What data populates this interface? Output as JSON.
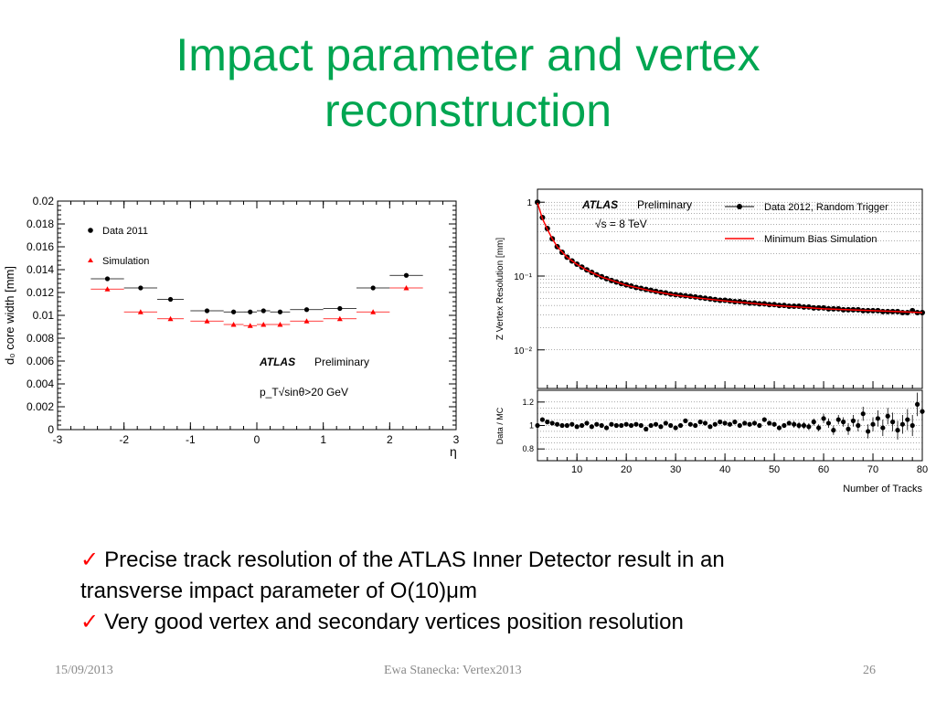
{
  "slide": {
    "title_line1": "Impact parameter and vertex",
    "title_line2": "reconstruction",
    "title_color": "#00a651",
    "bullets": [
      {
        "icon": "check-icon",
        "text": "Precise track resolution of the ATLAS Inner Detector result in an"
      },
      {
        "icon": null,
        "text": "transverse impact parameter of O(10)μm"
      },
      {
        "icon": "check-icon",
        "text": "Very good vertex and secondary vertices position resolution"
      }
    ],
    "footer": {
      "date": "15/09/2013",
      "author": "Ewa Stanecka: Vertex2013",
      "page": "26"
    }
  },
  "chart_data": [
    {
      "type": "scatter",
      "ylabel": "d₀ core width [mm]",
      "xlabel": "η",
      "xlim": [
        -3,
        3
      ],
      "ylim": [
        0,
        0.02
      ],
      "x_ticks": [
        "-3",
        "-2",
        "-1",
        "0",
        "1",
        "2",
        "3"
      ],
      "y_ticks": [
        "0",
        "0.002",
        "0.004",
        "0.006",
        "0.008",
        "0.01",
        "0.012",
        "0.014",
        "0.016",
        "0.018",
        "0.02"
      ],
      "legend_position": "top-left",
      "annotations": {
        "atlas": "ATLAS",
        "preliminary": "Preliminary",
        "cut": "p_T√sinθ>20 GeV"
      },
      "series": [
        {
          "name": "Data 2011",
          "marker": "circle",
          "color": "#000000",
          "x": [
            -2.25,
            -1.75,
            -1.3,
            -0.75,
            -0.35,
            -0.1,
            0.1,
            0.35,
            0.75,
            1.25,
            1.75,
            2.25
          ],
          "xerr": [
            0.25,
            0.25,
            0.2,
            0.25,
            0.15,
            0.1,
            0.1,
            0.15,
            0.25,
            0.25,
            0.25,
            0.25
          ],
          "y": [
            0.0132,
            0.0124,
            0.0114,
            0.0104,
            0.0103,
            0.0103,
            0.0104,
            0.0103,
            0.0105,
            0.0106,
            0.0124,
            0.0135
          ]
        },
        {
          "name": "Simulation",
          "marker": "triangle",
          "color": "#ff0000",
          "x": [
            -2.25,
            -1.75,
            -1.3,
            -0.75,
            -0.35,
            -0.1,
            0.1,
            0.35,
            0.75,
            1.25,
            1.75,
            2.25
          ],
          "xerr": [
            0.25,
            0.25,
            0.2,
            0.25,
            0.15,
            0.1,
            0.1,
            0.15,
            0.25,
            0.25,
            0.25,
            0.25
          ],
          "y": [
            0.0123,
            0.0103,
            0.0097,
            0.0095,
            0.0092,
            0.0091,
            0.0092,
            0.0092,
            0.0095,
            0.0097,
            0.0103,
            0.0124
          ]
        }
      ]
    },
    {
      "type": "scatter",
      "ylabel": "Z Vertex Resolution [mm]",
      "xlabel": "Number of Tracks",
      "xlim": [
        2,
        80
      ],
      "ylim": [
        0.003,
        1.5
      ],
      "log_y": true,
      "x_ticks": [
        "10",
        "20",
        "30",
        "40",
        "50",
        "60",
        "70",
        "80"
      ],
      "y_ticks": [
        "1",
        "10⁻¹",
        "10⁻²"
      ],
      "legend_position": "top-right",
      "annotations": {
        "atlas": "ATLAS",
        "preliminary": "Preliminary",
        "energy": "√s = 8 TeV"
      },
      "series": [
        {
          "name": "Data 2012, Random Trigger",
          "marker": "circle",
          "color": "#000000",
          "x": [
            2,
            3,
            4,
            5,
            6,
            7,
            8,
            9,
            10,
            11,
            12,
            13,
            14,
            15,
            16,
            17,
            18,
            19,
            20,
            21,
            22,
            23,
            24,
            25,
            26,
            27,
            28,
            29,
            30,
            31,
            32,
            33,
            34,
            35,
            36,
            37,
            38,
            39,
            40,
            41,
            42,
            43,
            44,
            45,
            46,
            47,
            48,
            49,
            50,
            51,
            52,
            53,
            54,
            55,
            56,
            57,
            58,
            59,
            60,
            61,
            62,
            63,
            64,
            65,
            66,
            67,
            68,
            69,
            70,
            71,
            72,
            73,
            74,
            75,
            76,
            77,
            78,
            79,
            80
          ],
          "y": [
            1.0,
            0.62,
            0.44,
            0.32,
            0.25,
            0.21,
            0.18,
            0.16,
            0.145,
            0.132,
            0.121,
            0.112,
            0.104,
            0.098,
            0.092,
            0.087,
            0.083,
            0.079,
            0.076,
            0.073,
            0.07,
            0.068,
            0.066,
            0.064,
            0.062,
            0.06,
            0.059,
            0.057,
            0.056,
            0.055,
            0.054,
            0.053,
            0.052,
            0.051,
            0.05,
            0.049,
            0.048,
            0.047,
            0.047,
            0.046,
            0.045,
            0.045,
            0.044,
            0.043,
            0.043,
            0.042,
            0.042,
            0.041,
            0.041,
            0.04,
            0.04,
            0.039,
            0.039,
            0.039,
            0.038,
            0.038,
            0.037,
            0.037,
            0.037,
            0.036,
            0.036,
            0.036,
            0.035,
            0.035,
            0.035,
            0.035,
            0.034,
            0.034,
            0.034,
            0.034,
            0.033,
            0.033,
            0.033,
            0.033,
            0.032,
            0.032,
            0.034,
            0.032,
            0.032
          ]
        },
        {
          "name": "Minimum Bias Simulation",
          "marker": "line",
          "color": "#ff0000",
          "x": [
            2,
            3,
            4,
            5,
            6,
            8,
            10,
            12,
            15,
            20,
            25,
            30,
            35,
            40,
            45,
            50,
            55,
            60,
            65,
            70,
            75,
            80
          ],
          "y": [
            0.98,
            0.6,
            0.43,
            0.32,
            0.25,
            0.18,
            0.144,
            0.12,
            0.097,
            0.075,
            0.063,
            0.055,
            0.05,
            0.046,
            0.043,
            0.04,
            0.038,
            0.036,
            0.035,
            0.034,
            0.033,
            0.032
          ]
        }
      ],
      "ratio_panel": {
        "ylabel": "Data / MC",
        "ylim": [
          0.7,
          1.3
        ],
        "y_ticks": [
          "0.8",
          "1",
          "1.2"
        ],
        "x": [
          2,
          3,
          4,
          5,
          6,
          7,
          8,
          9,
          10,
          11,
          12,
          13,
          14,
          15,
          16,
          17,
          18,
          19,
          20,
          21,
          22,
          23,
          24,
          25,
          26,
          27,
          28,
          29,
          30,
          31,
          32,
          33,
          34,
          35,
          36,
          37,
          38,
          39,
          40,
          41,
          42,
          43,
          44,
          45,
          46,
          47,
          48,
          49,
          50,
          51,
          52,
          53,
          54,
          55,
          56,
          57,
          58,
          59,
          60,
          61,
          62,
          63,
          64,
          65,
          66,
          67,
          68,
          69,
          70,
          71,
          72,
          73,
          74,
          75,
          76,
          77,
          78,
          79,
          80
        ],
        "y": [
          1.0,
          1.05,
          1.03,
          1.02,
          1.01,
          1.0,
          1.0,
          1.01,
          0.99,
          1.0,
          1.02,
          0.99,
          1.01,
          1.0,
          0.98,
          1.01,
          1.0,
          1.0,
          1.01,
          1.0,
          1.01,
          1.0,
          0.97,
          1.0,
          1.01,
          0.99,
          1.02,
          1.0,
          0.98,
          1.0,
          1.04,
          1.01,
          1.0,
          1.03,
          1.02,
          0.99,
          1.01,
          1.03,
          1.02,
          1.01,
          1.03,
          1.0,
          1.02,
          1.01,
          1.02,
          1.0,
          1.05,
          1.02,
          1.01,
          0.98,
          1.0,
          1.02,
          1.01,
          1.0,
          1.0,
          0.99,
          1.03,
          0.98,
          1.06,
          1.02,
          0.96,
          1.05,
          1.03,
          0.97,
          1.04,
          1.0,
          1.1,
          0.95,
          1.01,
          1.06,
          0.98,
          1.08,
          1.03,
          0.96,
          1.01,
          1.05,
          1.0,
          1.18,
          1.12
        ],
        "err": [
          0.01,
          0.01,
          0.01,
          0.01,
          0.01,
          0.01,
          0.01,
          0.01,
          0.01,
          0.01,
          0.01,
          0.01,
          0.01,
          0.01,
          0.01,
          0.01,
          0.01,
          0.01,
          0.01,
          0.01,
          0.01,
          0.01,
          0.01,
          0.01,
          0.01,
          0.01,
          0.01,
          0.01,
          0.01,
          0.01,
          0.01,
          0.015,
          0.015,
          0.015,
          0.015,
          0.015,
          0.015,
          0.015,
          0.015,
          0.02,
          0.02,
          0.02,
          0.02,
          0.02,
          0.02,
          0.02,
          0.02,
          0.02,
          0.02,
          0.02,
          0.02,
          0.02,
          0.03,
          0.03,
          0.03,
          0.03,
          0.03,
          0.03,
          0.04,
          0.04,
          0.04,
          0.04,
          0.04,
          0.05,
          0.05,
          0.05,
          0.06,
          0.06,
          0.06,
          0.07,
          0.07,
          0.07,
          0.08,
          0.08,
          0.08,
          0.09,
          0.09,
          0.1,
          0.1
        ]
      }
    }
  ]
}
